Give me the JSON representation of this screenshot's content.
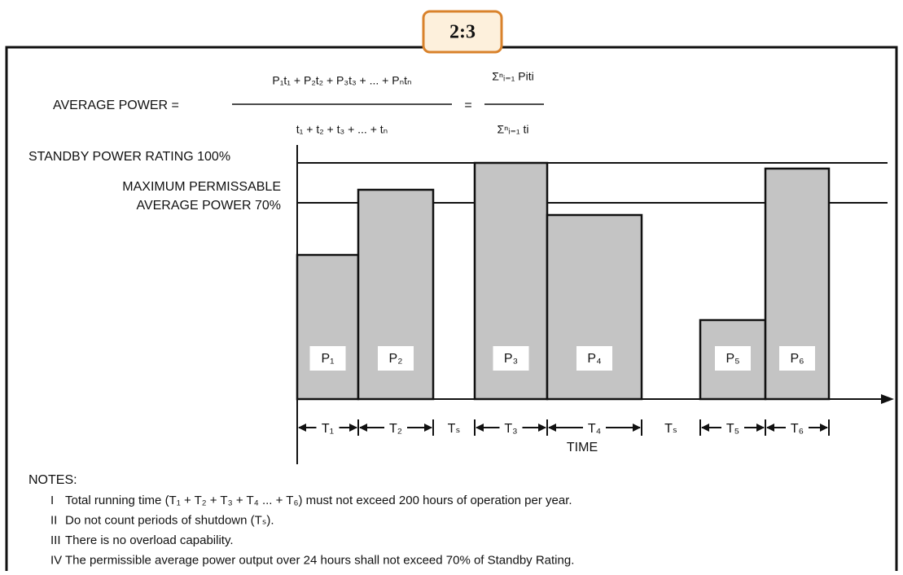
{
  "badge": "2:3",
  "formula": {
    "lhs": "AVERAGE POWER =",
    "numerator": "P₁t₁ + P₂t₂ + P₃t₃ + ... + Pₙtₙ",
    "denominator": "t₁ + t₂ + t₃ + ... + tₙ",
    "equals": "=",
    "sum_numerator": "Σⁿᵢ₌₁ Piti",
    "sum_denominator": "Σⁿᵢ₌₁ ti"
  },
  "levels": [
    {
      "lines": [
        "STANDBY POWER RATING 100%"
      ]
    },
    {
      "lines": [
        "MAXIMUM PERMISSABLE",
        "AVERAGE POWER 70%"
      ]
    }
  ],
  "bars": [
    "P₁",
    "P₂",
    "P₃",
    "P₄",
    "P₅",
    "P₆"
  ],
  "periods": [
    "T₁",
    "T₂",
    "Tₛ",
    "T₃",
    "T₄",
    "Tₛ",
    "T₅",
    "T₆"
  ],
  "axis_label": "TIME",
  "notes": {
    "heading": "NOTES:",
    "items": [
      {
        "numeral": "I",
        "text": "Total running time (T₁ + T₂ + T₃ + T₄ ... + T₆) must not exceed 200 hours of operation per year."
      },
      {
        "numeral": "II",
        "text": "Do not count periods of shutdown (Tₛ)."
      },
      {
        "numeral": "III",
        "text": "There is no overload capability."
      },
      {
        "numeral": "IV",
        "text": "The permissible average power output over 24 hours shall not exceed 70% of Standby Rating."
      }
    ]
  }
}
